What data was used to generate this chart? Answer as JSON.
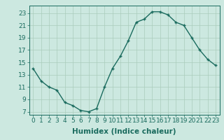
{
  "x": [
    0,
    1,
    2,
    3,
    4,
    5,
    6,
    7,
    8,
    9,
    10,
    11,
    12,
    13,
    14,
    15,
    16,
    17,
    18,
    19,
    20,
    21,
    22,
    23
  ],
  "y": [
    14.0,
    12.0,
    11.0,
    10.5,
    8.5,
    8.0,
    7.2,
    7.0,
    7.5,
    11.0,
    14.0,
    16.0,
    18.5,
    21.5,
    22.0,
    23.2,
    23.2,
    22.7,
    21.5,
    21.0,
    19.0,
    17.0,
    15.5,
    14.5
  ],
  "line_color": "#1a6b5e",
  "marker": "+",
  "bg_color": "#cce8e0",
  "grid_color": "#aaccbb",
  "xlabel": "Humidex (Indice chaleur)",
  "xlim": [
    -0.5,
    23.5
  ],
  "ylim": [
    6.5,
    24.2
  ],
  "yticks": [
    7,
    9,
    11,
    13,
    15,
    17,
    19,
    21,
    23
  ],
  "xticks": [
    0,
    1,
    2,
    3,
    4,
    5,
    6,
    7,
    8,
    9,
    10,
    11,
    12,
    13,
    14,
    15,
    16,
    17,
    18,
    19,
    20,
    21,
    22,
    23
  ],
  "xlabel_fontsize": 7.5,
  "tick_fontsize": 6.5
}
